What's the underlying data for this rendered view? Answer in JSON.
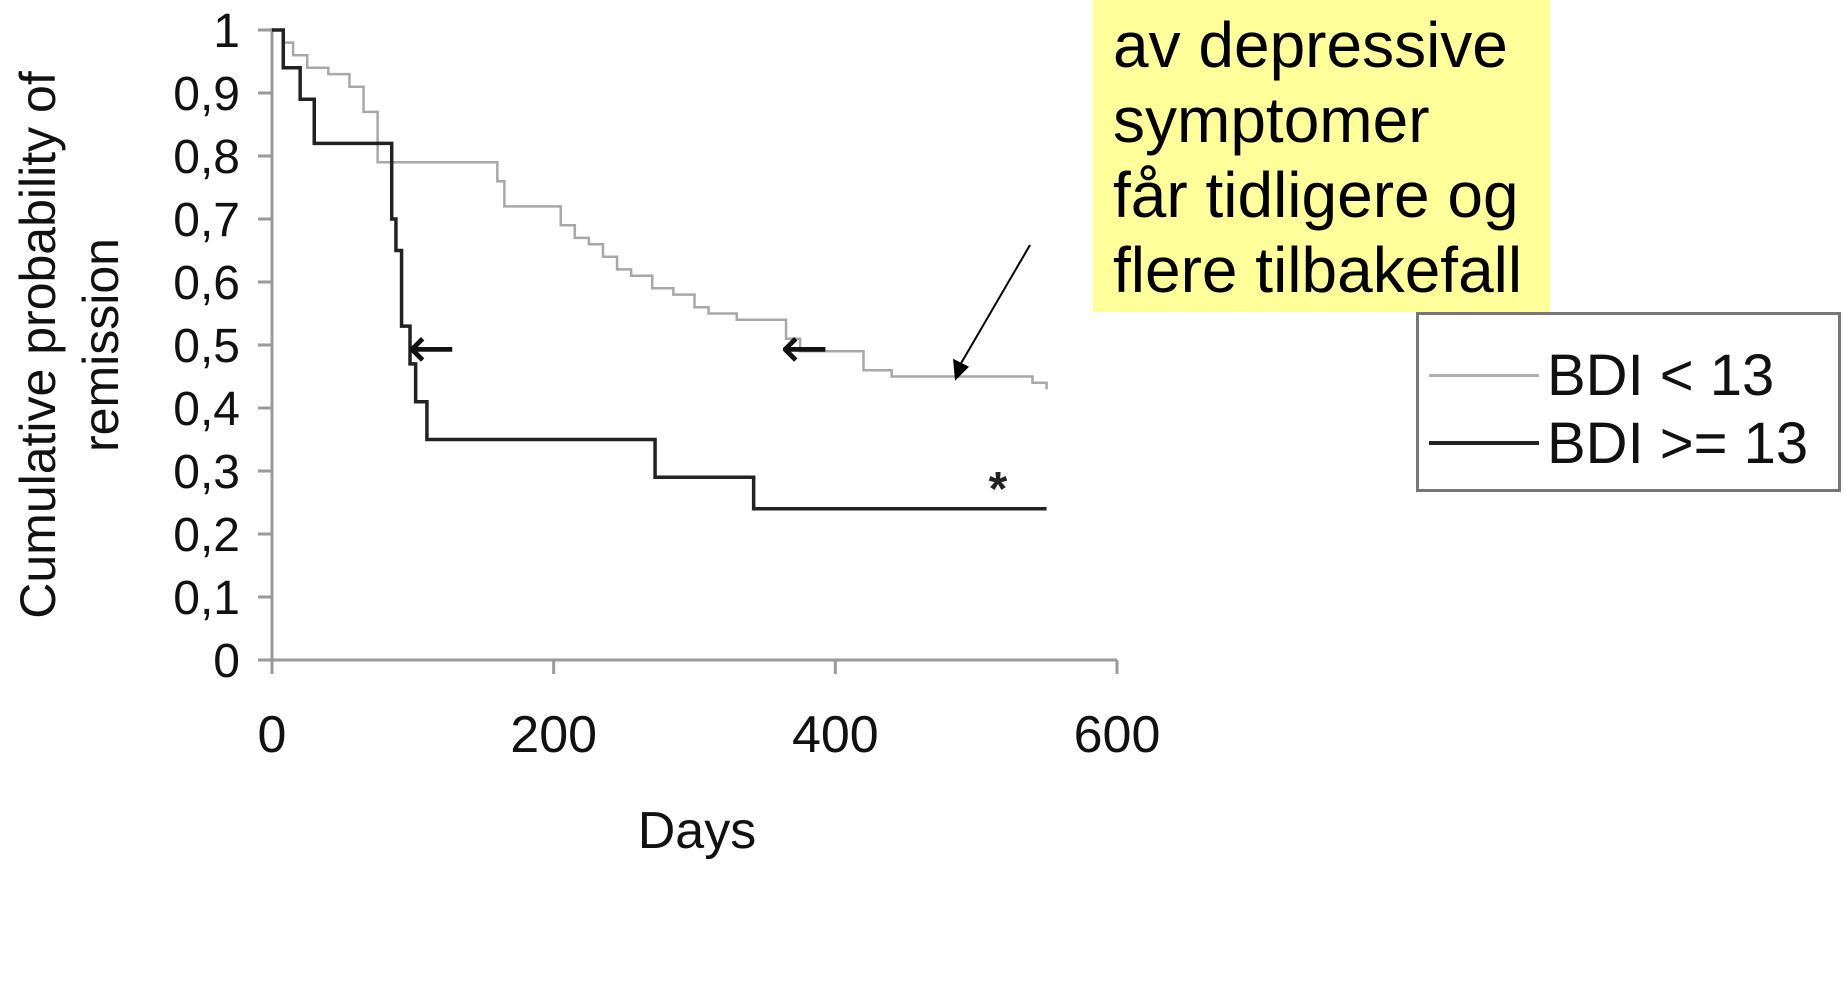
{
  "chart_data": {
    "type": "line",
    "step": true,
    "xlabel": "Days",
    "ylabel": [
      "Cumulative probability of",
      "remission"
    ],
    "xlim": [
      0,
      600
    ],
    "ylim": [
      0,
      1
    ],
    "x_ticks": [
      0,
      200,
      400,
      600
    ],
    "y_ticks": [
      0,
      0.1,
      0.2,
      0.3,
      0.4,
      0.5,
      0.6,
      0.7,
      0.8,
      0.9,
      1
    ],
    "y_tick_labels": [
      "0",
      "0,1",
      "0,2",
      "0,3",
      "0,4",
      "0,5",
      "0,6",
      "0,7",
      "0,8",
      "0,9",
      "1"
    ],
    "grid": false,
    "legend_position": "right",
    "series": [
      {
        "name": "BDI < 13",
        "color": "#a8a8a8",
        "x": [
          0,
          8,
          15,
          25,
          40,
          55,
          65,
          75,
          150,
          160,
          165,
          205,
          215,
          225,
          235,
          245,
          255,
          270,
          285,
          300,
          310,
          330,
          355,
          365,
          375,
          420,
          440,
          540,
          550
        ],
        "y": [
          1,
          0.98,
          0.96,
          0.94,
          0.93,
          0.91,
          0.87,
          0.79,
          0.79,
          0.76,
          0.72,
          0.69,
          0.67,
          0.66,
          0.64,
          0.62,
          0.61,
          0.59,
          0.58,
          0.56,
          0.55,
          0.54,
          0.54,
          0.51,
          0.49,
          0.46,
          0.45,
          0.44,
          0.43
        ]
      },
      {
        "name": "BDI >= 13",
        "color": "#222222",
        "x": [
          0,
          8,
          20,
          30,
          80,
          85,
          88,
          92,
          98,
          102,
          110,
          272,
          342,
          550
        ],
        "y": [
          1,
          0.94,
          0.89,
          0.82,
          0.82,
          0.7,
          0.65,
          0.53,
          0.47,
          0.41,
          0.35,
          0.29,
          0.24,
          0.24
        ]
      }
    ],
    "annotations": {
      "star": "*",
      "arrow_glyph": "←",
      "arrows": [
        {
          "x": 100,
          "y": 0.49
        },
        {
          "x": 365,
          "y": 0.49
        }
      ],
      "callout_pointer_target": {
        "x": 485,
        "y": 0.44
      }
    }
  },
  "callout": {
    "lines": [
      "av depressive",
      "symptomer",
      "får tidligere og",
      "flere tilbakefall"
    ],
    "background": "#ffff99"
  }
}
